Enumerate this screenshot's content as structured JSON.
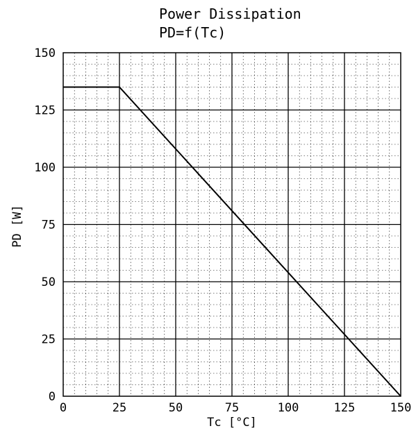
{
  "chart_data": {
    "type": "line",
    "title": "Power Dissipation",
    "subtitle": "PD=f(Tc)",
    "xlabel": "Tc [°C]",
    "ylabel": "PD [W]",
    "xlim": [
      0,
      150
    ],
    "ylim": [
      0,
      150
    ],
    "x_ticks": [
      "0",
      "25",
      "50",
      "75",
      "100",
      "125",
      "150"
    ],
    "y_ticks": [
      "0",
      "25",
      "50",
      "75",
      "100",
      "125",
      "150"
    ],
    "grid": true,
    "minor_grid": true,
    "series": [
      {
        "x": [
          0,
          25,
          150
        ],
        "y": [
          135,
          135,
          0
        ]
      }
    ],
    "colors": {
      "line": "#000000",
      "major_grid": "#000000",
      "minor_grid": "#000000"
    }
  }
}
